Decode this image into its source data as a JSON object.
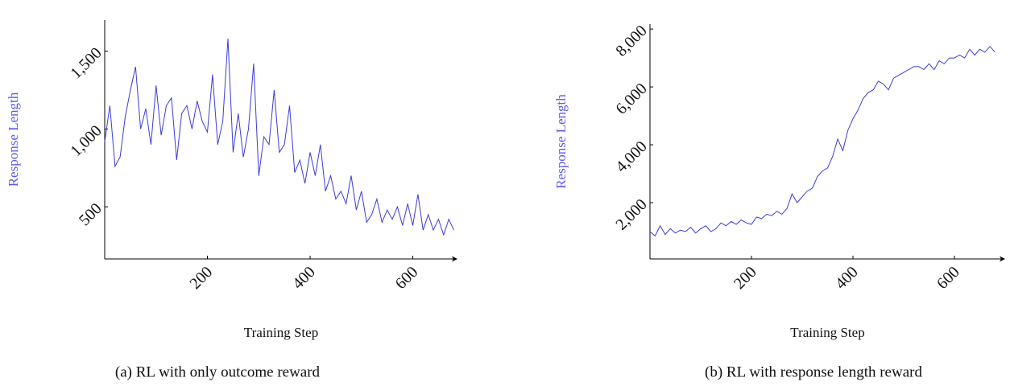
{
  "chart_data": [
    {
      "type": "line",
      "caption": "(a) RL with only outcome reward",
      "x_label": "Training Step",
      "y_label": "Response Length",
      "xlim": [
        0,
        687
      ],
      "ylim": [
        165,
        1700
      ],
      "xticks": [
        200,
        400,
        600
      ],
      "yticks": [
        500,
        {
          "value": 1000,
          "label": "1,000"
        },
        {
          "value": 1500,
          "label": "1,500"
        }
      ],
      "x": [
        0,
        10,
        20,
        30,
        40,
        50,
        60,
        70,
        80,
        90,
        100,
        110,
        120,
        130,
        140,
        150,
        160,
        170,
        180,
        190,
        200,
        210,
        220,
        230,
        240,
        250,
        260,
        270,
        280,
        290,
        300,
        310,
        320,
        330,
        340,
        350,
        360,
        370,
        380,
        390,
        400,
        410,
        420,
        430,
        440,
        450,
        460,
        470,
        480,
        490,
        500,
        510,
        520,
        530,
        540,
        550,
        560,
        570,
        580,
        590,
        600,
        610,
        620,
        630,
        640,
        650,
        660,
        670,
        680
      ],
      "series": [
        {
          "color": "#3b3bdc",
          "values": [
            920,
            1150,
            760,
            820,
            1080,
            1250,
            1400,
            1000,
            1130,
            900,
            1280,
            960,
            1150,
            1200,
            800,
            1100,
            1150,
            1000,
            1180,
            1050,
            980,
            1350,
            900,
            1050,
            1580,
            850,
            1100,
            820,
            1000,
            1420,
            700,
            950,
            900,
            1250,
            850,
            900,
            1150,
            720,
            800,
            650,
            850,
            700,
            900,
            600,
            700,
            550,
            600,
            520,
            700,
            480,
            600,
            400,
            450,
            550,
            400,
            480,
            420,
            500,
            380,
            520,
            380,
            580,
            350,
            450,
            350,
            420,
            320,
            420,
            350
          ]
        }
      ]
    },
    {
      "type": "line",
      "caption": "(b) RL with response length reward",
      "x_label": "Training Step",
      "y_label": "Response Length",
      "xlim": [
        0,
        700
      ],
      "ylim": [
        56,
        8170
      ],
      "xticks": [
        200,
        400,
        600
      ],
      "yticks": [
        {
          "value": 2000,
          "label": "2,000"
        },
        {
          "value": 4000,
          "label": "4,000"
        },
        {
          "value": 6000,
          "label": "6,000"
        },
        {
          "value": 8000,
          "label": "8,000"
        }
      ],
      "x": [
        0,
        10,
        20,
        30,
        40,
        50,
        60,
        70,
        80,
        90,
        100,
        110,
        120,
        130,
        140,
        150,
        160,
        170,
        180,
        190,
        200,
        210,
        220,
        230,
        240,
        250,
        260,
        270,
        280,
        290,
        300,
        310,
        320,
        330,
        340,
        350,
        360,
        370,
        380,
        390,
        400,
        410,
        420,
        430,
        440,
        450,
        460,
        470,
        480,
        490,
        500,
        510,
        520,
        530,
        540,
        550,
        560,
        570,
        580,
        590,
        600,
        610,
        620,
        630,
        640,
        650,
        660,
        670,
        680
      ],
      "series": [
        {
          "color": "#3b3bdc",
          "values": [
            1000,
            850,
            1200,
            900,
            1100,
            950,
            1050,
            1000,
            1150,
            950,
            1100,
            1200,
            1000,
            1100,
            1300,
            1200,
            1350,
            1250,
            1400,
            1300,
            1250,
            1500,
            1450,
            1600,
            1550,
            1700,
            1600,
            1800,
            2300,
            2000,
            2200,
            2400,
            2500,
            2900,
            3100,
            3200,
            3600,
            4200,
            3800,
            4500,
            4900,
            5200,
            5600,
            5800,
            5900,
            6200,
            6100,
            5900,
            6300,
            6400,
            6500,
            6600,
            6700,
            6700,
            6600,
            6800,
            6600,
            6900,
            6800,
            7000,
            7000,
            7100,
            7000,
            7300,
            7100,
            7300,
            7200,
            7400,
            7200
          ]
        }
      ]
    }
  ]
}
